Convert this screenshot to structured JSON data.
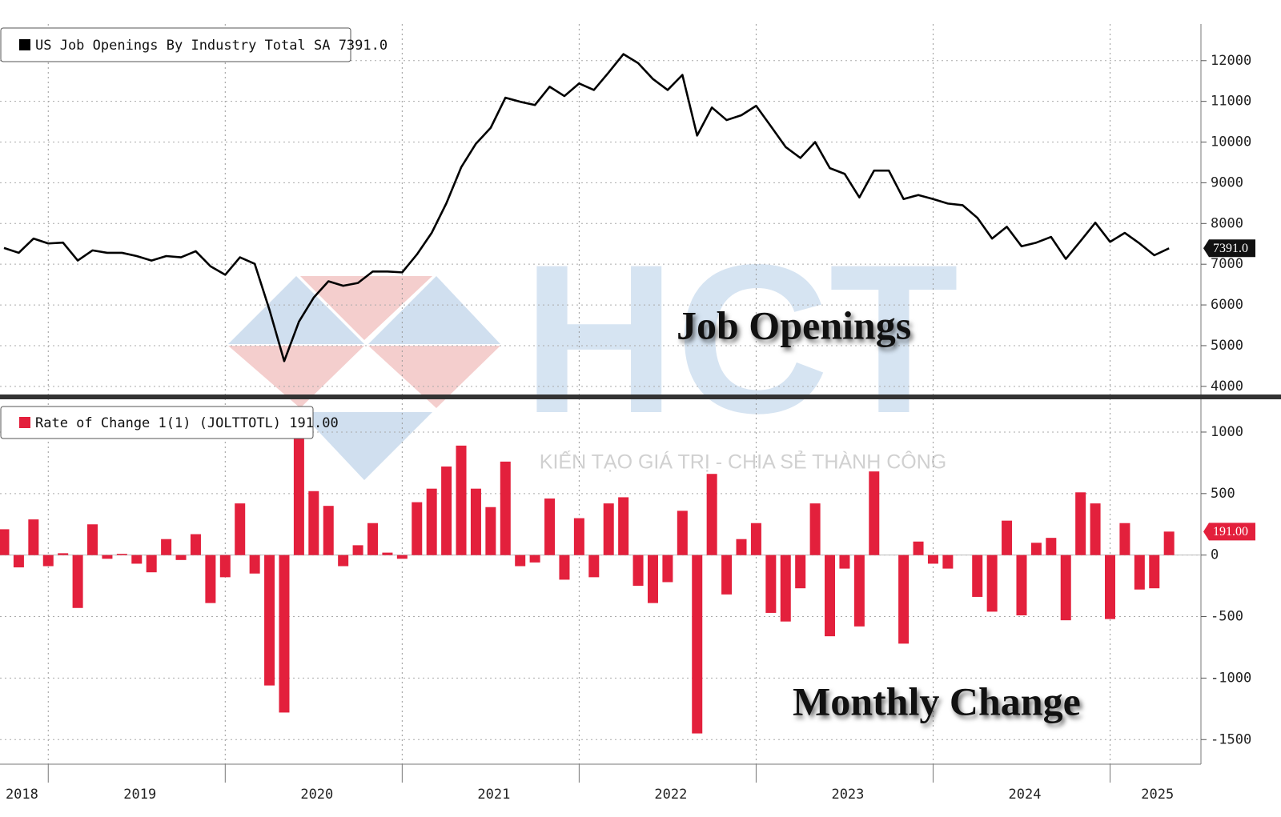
{
  "chart_data": [
    {
      "type": "line",
      "series": [
        {
          "name": "US Job Openings By Industry Total SA 7391.0",
          "color": "#000000",
          "values": [
            7400,
            7280,
            7630,
            7510,
            7530,
            7090,
            7340,
            7280,
            7280,
            7200,
            7090,
            7200,
            7170,
            7320,
            6950,
            6740,
            7170,
            7010,
            5880,
            4620,
            5590,
            6180,
            6580,
            6470,
            6540,
            6820,
            6820,
            6800,
            7240,
            7770,
            8500,
            9380,
            9960,
            10350,
            11090,
            10990,
            10910,
            11360,
            11130,
            11440,
            11280,
            11710,
            12160,
            11940,
            11550,
            11280,
            11650,
            10160,
            10850,
            10540,
            10660,
            10890,
            10390,
            9880,
            9610,
            10000,
            9360,
            9220,
            8640,
            9300,
            9300,
            8600,
            8700,
            8600,
            8490,
            8450,
            8140,
            7630,
            7920,
            7440,
            7530,
            7670,
            7130,
            7570,
            8020,
            7550,
            7770,
            7510,
            7220,
            7391
          ],
          "value_labels": [
            null,
            null,
            null,
            null,
            null,
            null,
            null,
            null,
            null,
            null,
            null,
            null,
            null,
            null,
            null,
            null,
            null,
            null,
            null,
            null,
            null,
            null,
            null,
            null,
            null,
            null,
            null,
            null,
            null,
            null,
            null,
            null,
            null,
            null,
            null,
            null,
            null,
            null,
            null,
            null,
            null,
            null,
            null,
            null,
            null,
            null,
            null,
            null,
            null,
            null,
            null,
            null,
            null,
            null,
            null,
            null,
            null,
            null,
            null,
            null,
            null,
            null,
            null,
            null,
            null,
            null,
            null,
            null,
            null,
            null,
            null,
            null,
            null,
            null,
            null,
            null,
            null,
            null,
            null,
            "7391.0"
          ]
        }
      ],
      "ylim": [
        3800,
        12900
      ],
      "yticks": [
        4000,
        5000,
        6000,
        7000,
        8000,
        9000,
        10000,
        11000,
        12000
      ],
      "grid": true,
      "annotation": "Job Openings"
    },
    {
      "type": "bar",
      "categories": [
        null,
        "2018",
        null,
        null,
        null,
        null,
        null,
        null,
        null,
        "2019",
        null,
        null,
        null,
        null,
        null,
        null,
        null,
        null,
        null,
        null,
        null,
        "2020",
        null,
        null,
        null,
        null,
        null,
        null,
        null,
        null,
        null,
        null,
        null,
        "2021",
        null,
        null,
        null,
        null,
        null,
        null,
        null,
        null,
        null,
        null,
        null,
        "2022",
        null,
        null,
        null,
        null,
        null,
        null,
        null,
        null,
        null,
        null,
        null,
        "2023",
        null,
        null,
        null,
        null,
        null,
        null,
        null,
        null,
        null,
        null,
        null,
        "2024",
        null,
        null,
        null,
        null,
        null,
        null,
        null,
        null,
        "2025",
        null
      ],
      "series": [
        {
          "name": "Rate of Change 1(1) (JOLTTOTL) 191.00",
          "color": "#e3203c",
          "values": [
            210,
            -100,
            290,
            -90,
            15,
            -430,
            250,
            -30,
            10,
            -70,
            -140,
            130,
            -40,
            170,
            -390,
            -180,
            420,
            -150,
            -1060,
            -1280,
            960,
            520,
            400,
            -90,
            80,
            260,
            20,
            -30,
            430,
            540,
            720,
            890,
            540,
            390,
            760,
            -90,
            -60,
            460,
            -200,
            300,
            -180,
            420,
            470,
            -250,
            -390,
            -220,
            360,
            -1450,
            660,
            -320,
            130,
            260,
            -470,
            -540,
            -270,
            420,
            -660,
            -110,
            -580,
            680,
            0,
            -720,
            110,
            -70,
            -110,
            0,
            -340,
            -460,
            280,
            -490,
            100,
            140,
            -530,
            510,
            420,
            -520,
            260,
            -280,
            -270,
            191
          ],
          "value_labels": [
            null,
            null,
            null,
            null,
            null,
            null,
            null,
            null,
            null,
            null,
            null,
            null,
            null,
            null,
            null,
            null,
            null,
            null,
            null,
            null,
            null,
            null,
            null,
            null,
            null,
            null,
            null,
            null,
            null,
            null,
            null,
            null,
            null,
            null,
            null,
            null,
            null,
            null,
            null,
            null,
            null,
            null,
            null,
            null,
            null,
            null,
            null,
            null,
            null,
            null,
            null,
            null,
            null,
            null,
            null,
            null,
            null,
            null,
            null,
            null,
            null,
            null,
            null,
            null,
            null,
            null,
            null,
            null,
            null,
            null,
            null,
            null,
            null,
            null,
            null,
            null,
            null,
            null,
            null,
            "191.00"
          ]
        }
      ],
      "ylim": [
        -1700,
        1260
      ],
      "yticks": [
        -1500,
        -1000,
        -500,
        0,
        500,
        1000
      ],
      "grid": true,
      "annotation": "Monthly Change"
    }
  ],
  "watermark": {
    "logo": "HCT",
    "tagline": "KIẾN TẠO GIÁ TRỊ - CHIA SẺ THÀNH CÔNG"
  }
}
